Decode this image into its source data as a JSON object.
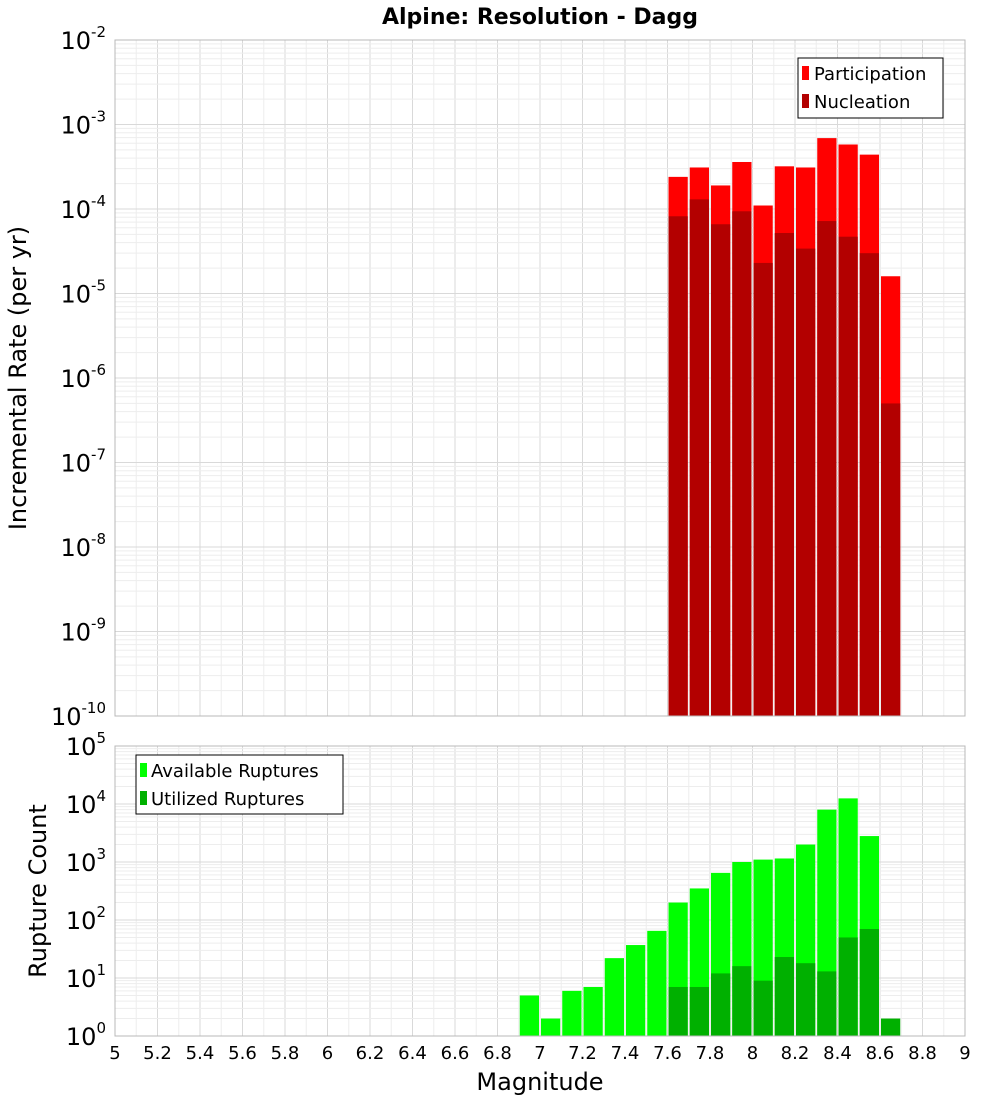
{
  "chart_data": [
    {
      "type": "bar",
      "title": "Alpine: Resolution - Dagg",
      "xlabel": "",
      "ylabel": "Incremental Rate (per yr)",
      "y_scale": "log",
      "ylim_exp": [
        -10,
        -2
      ],
      "xlim": [
        5,
        9
      ],
      "bin_width": 0.1,
      "grid": true,
      "legend_position": "top-right",
      "x": [
        7.65,
        7.75,
        7.85,
        7.95,
        8.05,
        8.15,
        8.25,
        8.35,
        8.45,
        8.55,
        8.65
      ],
      "series": [
        {
          "name": "Participation",
          "color": "#ff0000",
          "values": [
            0.00024,
            0.00031,
            0.00019,
            0.00036,
            0.00011,
            0.00032,
            0.00031,
            0.00069,
            0.00058,
            0.00044,
            1.6e-05
          ]
        },
        {
          "name": "Nucleation",
          "color": "#b30000",
          "values": [
            8.2e-05,
            0.00013,
            6.6e-05,
            9.4e-05,
            2.3e-05,
            5.2e-05,
            3.4e-05,
            7.2e-05,
            4.7e-05,
            3e-05,
            5e-07
          ]
        }
      ]
    },
    {
      "type": "bar",
      "title": "",
      "xlabel": "Magnitude",
      "ylabel": "Rupture Count",
      "y_scale": "log",
      "ylim_exp": [
        0,
        5
      ],
      "xlim": [
        5,
        9
      ],
      "bin_width": 0.1,
      "grid": true,
      "legend_position": "top-left",
      "x": [
        6.95,
        7.05,
        7.15,
        7.25,
        7.35,
        7.45,
        7.55,
        7.65,
        7.75,
        7.85,
        7.95,
        8.05,
        8.15,
        8.25,
        8.35,
        8.45,
        8.55,
        8.65
      ],
      "xticks": [
        "5",
        "5.2",
        "5.4",
        "5.6",
        "5.8",
        "6",
        "6.2",
        "6.4",
        "6.6",
        "6.8",
        "7",
        "7.2",
        "7.4",
        "7.6",
        "7.8",
        "8",
        "8.2",
        "8.4",
        "8.6",
        "8.8",
        "9"
      ],
      "series": [
        {
          "name": "Available Ruptures",
          "color": "#00ff00",
          "values": [
            5,
            2,
            6,
            7,
            22,
            37,
            65,
            200,
            350,
            650,
            1000,
            1100,
            1150,
            2000,
            8000,
            12500,
            2800,
            0
          ]
        },
        {
          "name": "Utilized Ruptures",
          "color": "#00b000",
          "values": [
            0,
            0,
            0,
            0,
            0,
            0,
            0,
            7,
            7,
            12,
            16,
            9,
            23,
            18,
            13,
            50,
            70,
            2
          ]
        }
      ]
    }
  ]
}
